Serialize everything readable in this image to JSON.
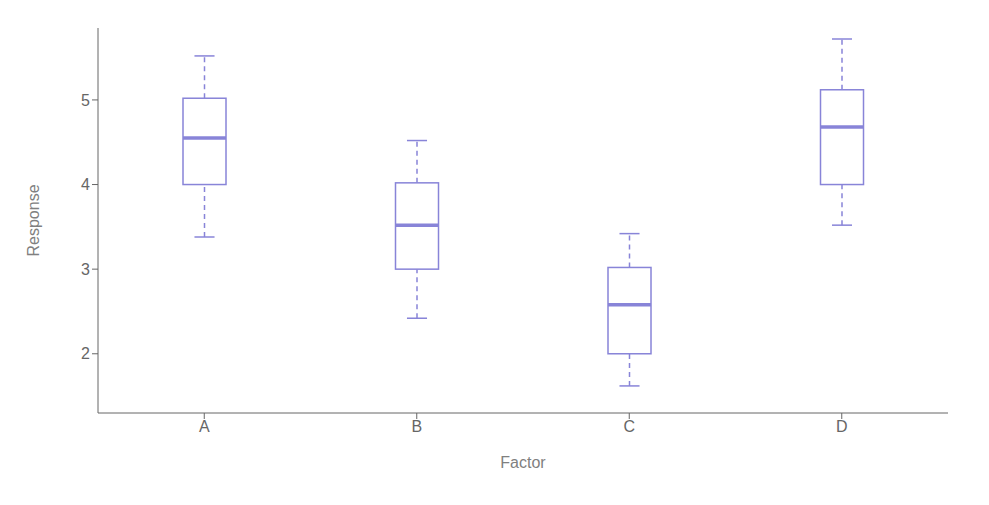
{
  "chart_data": {
    "type": "box",
    "categories": [
      "A",
      "B",
      "C",
      "D"
    ],
    "boxes": [
      {
        "q1": 4.0,
        "median": 4.55,
        "q3": 5.02,
        "whisker_low": 3.38,
        "whisker_high": 5.52
      },
      {
        "q1": 3.0,
        "median": 3.52,
        "q3": 4.02,
        "whisker_low": 2.42,
        "whisker_high": 4.52
      },
      {
        "q1": 2.0,
        "median": 2.58,
        "q3": 3.02,
        "whisker_low": 1.62,
        "whisker_high": 3.42
      },
      {
        "q1": 4.0,
        "median": 4.68,
        "q3": 5.12,
        "whisker_low": 3.52,
        "whisker_high": 5.72
      }
    ],
    "xlabel": "Factor",
    "ylabel": "Response",
    "ylim": [
      1.3,
      5.85
    ],
    "yticks": [
      2,
      3,
      4,
      5
    ]
  }
}
